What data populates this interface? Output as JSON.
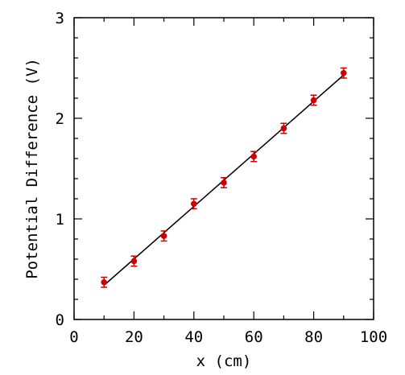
{
  "chart_data": {
    "type": "scatter",
    "title": "",
    "xlabel": "x (cm)",
    "ylabel": "Potential Difference (V)",
    "xlim": [
      0,
      100
    ],
    "ylim": [
      0,
      3
    ],
    "xticks": [
      0,
      20,
      40,
      60,
      80,
      100
    ],
    "yticks": [
      0,
      1,
      2,
      3
    ],
    "grid": false,
    "series": [
      {
        "x": [
          10,
          20,
          30,
          40,
          50,
          60,
          70,
          80,
          90
        ],
        "y": [
          0.37,
          0.58,
          0.83,
          1.15,
          1.36,
          1.62,
          1.9,
          2.18,
          2.45
        ],
        "yerr": [
          0.05,
          0.05,
          0.05,
          0.05,
          0.05,
          0.05,
          0.05,
          0.05,
          0.05
        ],
        "color": "#cc0000"
      }
    ],
    "fit_line": {
      "x": [
        10,
        90
      ],
      "y": [
        0.34,
        2.43
      ],
      "color": "#000000"
    },
    "frame_color": "#000000"
  }
}
